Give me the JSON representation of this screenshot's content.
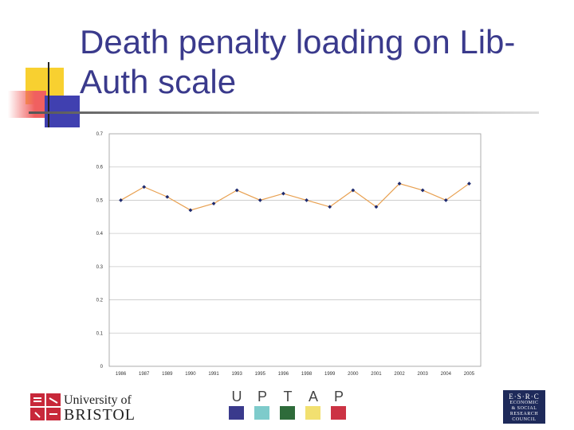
{
  "slide": {
    "title": "Death penalty loading on Lib-Auth scale"
  },
  "chart_data": {
    "type": "line",
    "title": "",
    "xlabel": "",
    "ylabel": "",
    "categories": [
      "1986",
      "1987",
      "1989",
      "1990",
      "1991",
      "1993",
      "1995",
      "1996",
      "1998",
      "1999",
      "2000",
      "2001",
      "2002",
      "2003",
      "2004",
      "2005"
    ],
    "series": [
      {
        "values": [
          0.5,
          0.54,
          0.51,
          0.47,
          0.49,
          0.53,
          0.5,
          0.52,
          0.5,
          0.48,
          0.53,
          0.48,
          0.55,
          0.53,
          0.5,
          0.55
        ]
      }
    ],
    "yticks": [
      "0",
      "0.1",
      "0.2",
      "0.3",
      "0.4",
      "0.5",
      "0.6",
      "0.7"
    ],
    "ylim": [
      0,
      0.7
    ],
    "grid": true,
    "legend": "none",
    "line_color": "#e8a050",
    "marker_color": "#1e2a6e"
  },
  "footer": {
    "university_line1": "University of",
    "university_line2": "BRISTOL",
    "uptap_letters": [
      "U",
      "P",
      "T",
      "A",
      "P"
    ],
    "uptap_colors": [
      "#3a3a8c",
      "#7ecbcb",
      "#2e6b3a",
      "#f2e070",
      "#cc3344"
    ],
    "esrc_title": "E·S·R·C",
    "esrc_lines": [
      "ECONOMIC",
      "& SOCIAL",
      "RESEARCH",
      "COUNCIL"
    ]
  },
  "colors": {
    "title": "#3a3a8c",
    "deco_yellow": "#f8d030",
    "deco_red": "#f06060",
    "deco_blue": "#4040b0"
  }
}
